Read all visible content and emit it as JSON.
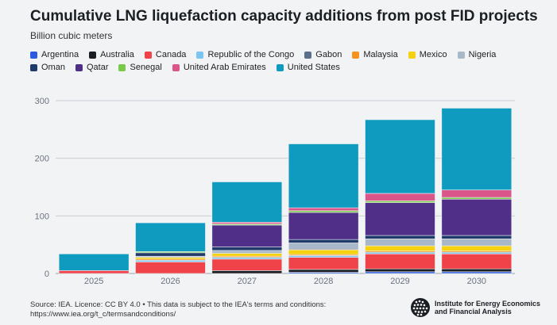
{
  "header": {
    "title": "Cumulative LNG liquefaction capacity additions from post FID projects",
    "subtitle": "Billion cubic meters"
  },
  "footer": {
    "source_line1": "Source: IEA. Licence: CC BY 4.0 • This data is subject to the IEA's terms and conditions:",
    "source_line2": "https://www.iea.org/t_c/termsandconditions/"
  },
  "logo": {
    "line1": "Institute for Energy Economics",
    "line2": "and Financial Analysis",
    "icon": "globe-icon"
  },
  "chart_data": {
    "type": "bar",
    "stacked": true,
    "title": "Cumulative LNG liquefaction capacity additions from post FID projects",
    "subtitle": "Billion cubic meters",
    "xlabel": "",
    "ylabel": "",
    "ylim": [
      0,
      300
    ],
    "yticks": [
      0,
      100,
      200,
      300
    ],
    "grid": true,
    "legend_position": "top",
    "categories": [
      "2025",
      "2026",
      "2027",
      "2028",
      "2029",
      "2030"
    ],
    "series": [
      {
        "name": "Argentina",
        "color": "#2b59e0",
        "values": [
          0,
          0,
          0,
          2,
          3,
          3
        ]
      },
      {
        "name": "Australia",
        "color": "#1b1f24",
        "values": [
          0,
          0,
          5,
          5,
          5,
          5
        ]
      },
      {
        "name": "Canada",
        "color": "#ef4349",
        "values": [
          5,
          20,
          20,
          21,
          26,
          26
        ]
      },
      {
        "name": "Republic of the Congo",
        "color": "#7cc4f0",
        "values": [
          0,
          3,
          3,
          3,
          3,
          3
        ]
      },
      {
        "name": "Gabon",
        "color": "#5b6f8a",
        "values": [
          0,
          0,
          0,
          0,
          0,
          0
        ]
      },
      {
        "name": "Malaysia",
        "color": "#f6921e",
        "values": [
          0,
          2,
          2,
          2,
          2,
          2
        ]
      },
      {
        "name": "Mexico",
        "color": "#f5d10f",
        "values": [
          0,
          3,
          5,
          8,
          9,
          9
        ]
      },
      {
        "name": "Nigeria",
        "color": "#a9b8c8",
        "values": [
          0,
          2,
          5,
          12,
          12,
          12
        ]
      },
      {
        "name": "Oman",
        "color": "#1f3a6b",
        "values": [
          0,
          6,
          6,
          6,
          6,
          6
        ]
      },
      {
        "name": "Qatar",
        "color": "#4f2f87",
        "values": [
          0,
          0,
          38,
          47,
          57,
          63
        ]
      },
      {
        "name": "Senegal",
        "color": "#79c94b",
        "values": [
          0,
          2,
          2,
          3,
          3,
          3
        ]
      },
      {
        "name": "United Arab Emirates",
        "color": "#d9558a",
        "values": [
          0,
          0,
          3,
          5,
          13,
          13
        ]
      },
      {
        "name": "United States",
        "color": "#0e9bbf",
        "values": [
          29,
          50,
          70,
          111,
          128,
          142
        ]
      }
    ]
  }
}
